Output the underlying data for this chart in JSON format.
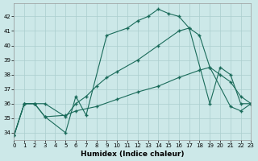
{
  "xlabel": "Humidex (Indice chaleur)",
  "bg_color": "#cce8e8",
  "grid_color": "#aacece",
  "line_color": "#1a6b5a",
  "xlim": [
    0,
    23
  ],
  "ylim": [
    33.5,
    42.9
  ],
  "yticks": [
    34,
    35,
    36,
    37,
    38,
    39,
    40,
    41,
    42
  ],
  "xticks": [
    0,
    1,
    2,
    3,
    4,
    5,
    6,
    7,
    8,
    9,
    10,
    11,
    12,
    13,
    14,
    15,
    16,
    17,
    18,
    19,
    20,
    21,
    22,
    23
  ],
  "line1_x": [
    0,
    1,
    2,
    3,
    5,
    6,
    7,
    9,
    11,
    12,
    13,
    14,
    15,
    16,
    17,
    19,
    20,
    21,
    22,
    23
  ],
  "line1_y": [
    33.8,
    36.0,
    36.0,
    35.1,
    34.0,
    36.5,
    35.2,
    40.7,
    41.2,
    41.7,
    42.0,
    42.5,
    42.2,
    42.0,
    41.2,
    36.0,
    38.5,
    38.0,
    36.0,
    36.0
  ],
  "line2_x": [
    0,
    1,
    2,
    3,
    5,
    6,
    7,
    8,
    9,
    10,
    12,
    14,
    16,
    17,
    18,
    19,
    20,
    21,
    22,
    23
  ],
  "line2_y": [
    33.8,
    36.0,
    36.0,
    36.0,
    35.1,
    36.0,
    36.5,
    37.2,
    37.8,
    38.2,
    39.0,
    40.0,
    41.0,
    41.2,
    40.7,
    38.5,
    38.0,
    37.5,
    36.5,
    36.0
  ],
  "line3_x": [
    0,
    1,
    2,
    3,
    5,
    6,
    8,
    10,
    12,
    14,
    16,
    18,
    19,
    21,
    22,
    23
  ],
  "line3_y": [
    33.8,
    36.0,
    36.0,
    35.1,
    35.2,
    35.5,
    35.8,
    36.3,
    36.8,
    37.2,
    37.8,
    38.3,
    38.5,
    35.8,
    35.5,
    36.0
  ]
}
